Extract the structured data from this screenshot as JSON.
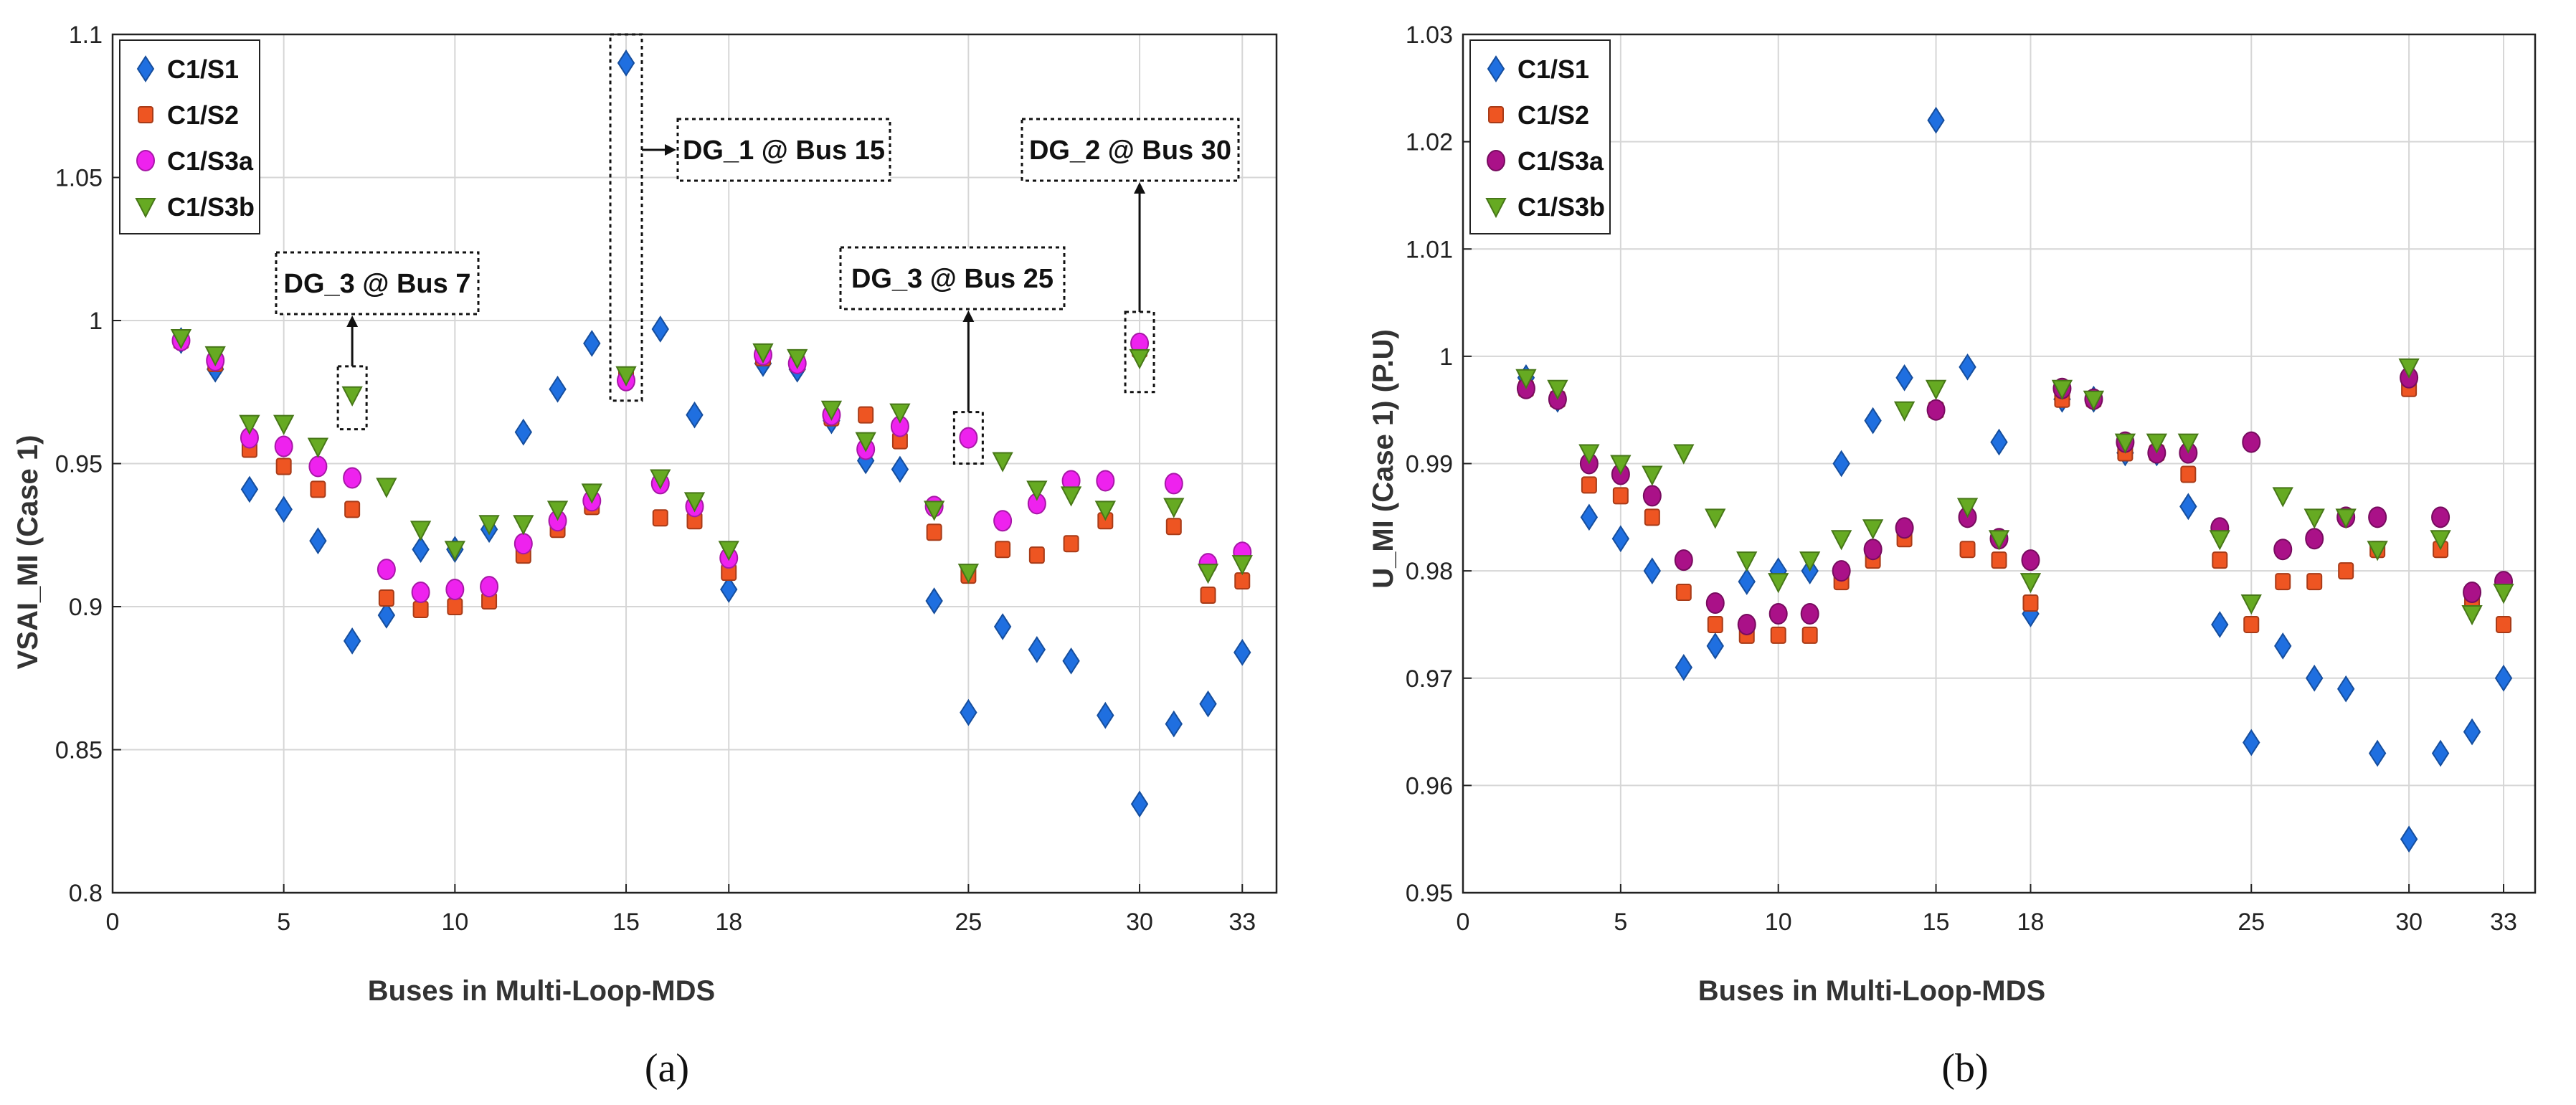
{
  "figure": {
    "caption_a": "(a)",
    "caption_b": "(b)"
  },
  "chart_data": [
    {
      "type": "scatter",
      "id": "a",
      "title": "",
      "xlabel": "Buses in Multi-Loop-MDS",
      "ylabel": "VSAI_MI (Case 1)",
      "xlim": [
        0,
        34
      ],
      "ylim": [
        0.8,
        1.1
      ],
      "xticks": [
        0,
        5,
        10,
        15,
        18,
        25,
        30,
        33
      ],
      "yticks": [
        0.8,
        0.85,
        0.9,
        0.95,
        1,
        1.05,
        1.1
      ],
      "ytick_labels": [
        "0.8",
        "0.85",
        "0.9",
        "0.95",
        "1",
        "1.05",
        "1.1"
      ],
      "grid": true,
      "legend_position": "top-left",
      "series": [
        {
          "name": "C1/S1",
          "marker": "diamond",
          "color": "#1f6fe0",
          "x": [
            2,
            3,
            4,
            5,
            6,
            7,
            8,
            9,
            10,
            11,
            12,
            13,
            14,
            15,
            16,
            17,
            18,
            19,
            20,
            21,
            22,
            23,
            24,
            25,
            26,
            27,
            28,
            29,
            30,
            31,
            32,
            33
          ],
          "y": [
            0.993,
            0.983,
            0.941,
            0.934,
            0.923,
            0.888,
            0.897,
            0.92,
            0.92,
            0.927,
            0.961,
            0.976,
            0.992,
            1.09,
            0.997,
            0.967,
            0.906,
            0.985,
            0.983,
            0.965,
            0.951,
            0.948,
            0.902,
            0.863,
            0.893,
            0.885,
            0.881,
            0.862,
            0.831,
            0.859,
            0.866,
            0.884
          ]
        },
        {
          "name": "C1/S2",
          "marker": "square",
          "color": "#ee5522",
          "x": [
            2,
            3,
            4,
            5,
            6,
            7,
            8,
            9,
            10,
            11,
            12,
            13,
            14,
            15,
            16,
            17,
            18,
            19,
            20,
            21,
            22,
            23,
            24,
            25,
            26,
            27,
            28,
            29,
            30,
            31,
            32,
            33
          ],
          "y": [
            0.993,
            0.985,
            0.955,
            0.949,
            0.941,
            0.934,
            0.903,
            0.899,
            0.9,
            0.902,
            0.918,
            0.927,
            0.935,
            0.98,
            0.931,
            0.93,
            0.912,
            0.987,
            0.985,
            0.966,
            0.967,
            0.958,
            0.926,
            0.911,
            0.92,
            0.918,
            0.922,
            0.93,
            0.99,
            0.928,
            0.904,
            0.909
          ]
        },
        {
          "name": "C1/S3a",
          "marker": "circle",
          "color": "#ee22ee",
          "x": [
            2,
            3,
            4,
            5,
            6,
            7,
            8,
            9,
            10,
            11,
            12,
            13,
            14,
            15,
            16,
            17,
            18,
            19,
            20,
            21,
            22,
            23,
            24,
            25,
            26,
            27,
            28,
            29,
            30,
            31,
            32,
            33
          ],
          "y": [
            0.993,
            0.986,
            0.959,
            0.956,
            0.949,
            0.945,
            0.913,
            0.905,
            0.906,
            0.907,
            0.922,
            0.93,
            0.937,
            0.979,
            0.943,
            0.935,
            0.917,
            0.988,
            0.985,
            0.967,
            0.955,
            0.963,
            0.935,
            0.959,
            0.93,
            0.936,
            0.944,
            0.944,
            0.992,
            0.943,
            0.915,
            0.919
          ]
        },
        {
          "name": "C1/S3b",
          "marker": "triangle-down",
          "color": "#66aa22",
          "x": [
            2,
            3,
            4,
            5,
            6,
            7,
            8,
            9,
            10,
            11,
            12,
            13,
            14,
            15,
            16,
            17,
            18,
            19,
            20,
            21,
            22,
            23,
            24,
            25,
            26,
            27,
            28,
            29,
            30,
            31,
            32,
            33
          ],
          "y": [
            0.994,
            0.988,
            0.964,
            0.964,
            0.956,
            0.974,
            0.942,
            0.927,
            0.92,
            0.929,
            0.929,
            0.934,
            0.94,
            0.981,
            0.945,
            0.937,
            0.92,
            0.989,
            0.987,
            0.969,
            0.958,
            0.968,
            0.934,
            0.912,
            0.951,
            0.941,
            0.939,
            0.934,
            0.987,
            0.935,
            0.912,
            0.915
          ]
        }
      ],
      "annotations": [
        {
          "text": "DG_3 @ Bus 7",
          "bus": 7
        },
        {
          "text": "DG_1 @ Bus 15",
          "bus": 15
        },
        {
          "text": "DG_3 @ Bus 25",
          "bus": 25
        },
        {
          "text": "DG_2 @ Bus 30",
          "bus": 30
        }
      ]
    },
    {
      "type": "scatter",
      "id": "b",
      "title": "",
      "xlabel": "Buses in Multi-Loop-MDS",
      "ylabel": "U_MI (Case 1) (P.U)",
      "xlim": [
        0,
        34
      ],
      "ylim": [
        0.95,
        1.03
      ],
      "xticks": [
        0,
        5,
        10,
        15,
        18,
        25,
        30,
        33
      ],
      "yticks": [
        0.95,
        0.96,
        0.97,
        0.98,
        0.99,
        1,
        1.01,
        1.02,
        1.03
      ],
      "ytick_labels": [
        "0.95",
        "0.96",
        "0.97",
        "0.98",
        "0.99",
        "1",
        "1.01",
        "1.02",
        "1.03"
      ],
      "grid": true,
      "legend_position": "top-left",
      "series": [
        {
          "name": "C1/S1",
          "marker": "diamond",
          "color": "#1f6fe0",
          "x": [
            2,
            3,
            4,
            5,
            6,
            7,
            8,
            9,
            10,
            11,
            12,
            13,
            14,
            15,
            16,
            17,
            18,
            19,
            20,
            21,
            22,
            23,
            24,
            25,
            26,
            27,
            28,
            29,
            30,
            31,
            32,
            33
          ],
          "y": [
            0.998,
            0.996,
            0.985,
            0.983,
            0.98,
            0.971,
            0.973,
            0.979,
            0.98,
            0.98,
            0.99,
            0.994,
            0.998,
            1.022,
            0.999,
            0.992,
            0.976,
            0.996,
            0.996,
            0.991,
            0.991,
            0.986,
            0.975,
            0.964,
            0.973,
            0.97,
            0.969,
            0.963,
            0.955,
            0.963,
            0.965,
            0.97
          ]
        },
        {
          "name": "C1/S2",
          "marker": "square",
          "color": "#ee5522",
          "x": [
            2,
            3,
            4,
            5,
            6,
            7,
            8,
            9,
            10,
            11,
            12,
            13,
            14,
            15,
            16,
            17,
            18,
            19,
            20,
            21,
            22,
            23,
            24,
            25,
            26,
            27,
            28,
            29,
            30,
            31,
            32,
            33
          ],
          "y": [
            0.997,
            0.996,
            0.988,
            0.987,
            0.985,
            0.978,
            0.975,
            0.974,
            0.974,
            0.974,
            0.979,
            0.981,
            0.983,
            0.995,
            0.982,
            0.981,
            0.977,
            0.996,
            0.996,
            0.991,
            0.991,
            0.989,
            0.981,
            0.975,
            0.979,
            0.979,
            0.98,
            0.982,
            0.997,
            0.982,
            0.977,
            0.975
          ]
        },
        {
          "name": "C1/S3a",
          "marker": "circle",
          "color": "#aa1188",
          "x": [
            2,
            3,
            4,
            5,
            6,
            7,
            8,
            9,
            10,
            11,
            12,
            13,
            14,
            15,
            16,
            17,
            18,
            19,
            20,
            21,
            22,
            23,
            24,
            25,
            26,
            27,
            28,
            29,
            30,
            31,
            32,
            33
          ],
          "y": [
            0.997,
            0.996,
            0.99,
            0.989,
            0.987,
            0.981,
            0.977,
            0.975,
            0.976,
            0.976,
            0.98,
            0.982,
            0.984,
            0.995,
            0.985,
            0.983,
            0.981,
            0.997,
            0.996,
            0.992,
            0.991,
            0.991,
            0.984,
            0.992,
            0.982,
            0.983,
            0.985,
            0.985,
            0.998,
            0.985,
            0.978,
            0.979
          ]
        },
        {
          "name": "C1/S3b",
          "marker": "triangle-down",
          "color": "#66aa22",
          "x": [
            2,
            3,
            4,
            5,
            6,
            7,
            8,
            9,
            10,
            11,
            12,
            13,
            14,
            15,
            16,
            17,
            18,
            19,
            20,
            21,
            22,
            23,
            24,
            25,
            26,
            27,
            28,
            29,
            30,
            31,
            32,
            33
          ],
          "y": [
            0.998,
            0.997,
            0.991,
            0.99,
            0.989,
            0.991,
            0.985,
            0.981,
            0.979,
            0.981,
            0.983,
            0.984,
            0.995,
            0.997,
            0.986,
            0.983,
            0.979,
            0.997,
            0.996,
            0.992,
            0.992,
            0.992,
            0.983,
            0.977,
            0.987,
            0.985,
            0.985,
            0.982,
            0.999,
            0.983,
            0.976,
            0.978
          ]
        }
      ]
    }
  ]
}
